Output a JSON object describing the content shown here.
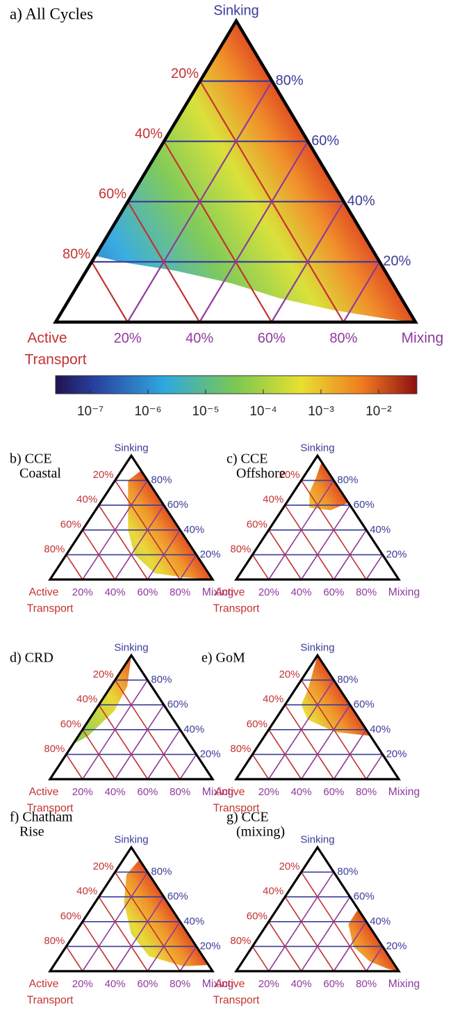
{
  "figure": {
    "axes": {
      "top": "Sinking",
      "left": [
        "Active",
        "Transport"
      ],
      "right": "Mixing",
      "lim": [
        0,
        100
      ],
      "left_ticks": [
        {
          "value": 20,
          "label": "20%"
        },
        {
          "value": 40,
          "label": "40%"
        },
        {
          "value": 60,
          "label": "60%"
        },
        {
          "value": 80,
          "label": "80%"
        }
      ],
      "right_ticks": [
        {
          "value": 80,
          "label": "80%"
        },
        {
          "value": 60,
          "label": "60%"
        },
        {
          "value": 40,
          "label": "40%"
        },
        {
          "value": 20,
          "label": "20%"
        }
      ],
      "bottom_ticks": [
        {
          "value": 20,
          "label": "20%"
        },
        {
          "value": 40,
          "label": "40%"
        },
        {
          "value": 60,
          "label": "60%"
        },
        {
          "value": 80,
          "label": "80%"
        }
      ]
    },
    "colorbar": {
      "log": true,
      "lim": [
        2.5e-08,
        0.046
      ],
      "ticks": [
        {
          "value": 1e-07,
          "label": "10⁻⁷"
        },
        {
          "value": 1e-06,
          "label": "10⁻⁶"
        },
        {
          "value": 1e-05,
          "label": "10⁻⁵"
        },
        {
          "value": 0.0001,
          "label": "10⁻⁴"
        },
        {
          "value": 0.001,
          "label": "10⁻³"
        },
        {
          "value": 0.01,
          "label": "10⁻²"
        }
      ]
    },
    "panels": [
      {
        "label": [
          "a) All Cycles"
        ]
      },
      {
        "label": [
          "b) CCE",
          "Coastal"
        ]
      },
      {
        "label": [
          "c) CCE",
          "Offshore"
        ]
      },
      {
        "label": [
          "d) CRD"
        ]
      },
      {
        "label": [
          "e) GoM"
        ]
      },
      {
        "label": [
          "f) Chatham",
          "Rise"
        ]
      },
      {
        "label": [
          "g) CCE",
          "(mixing)"
        ]
      }
    ]
  }
}
